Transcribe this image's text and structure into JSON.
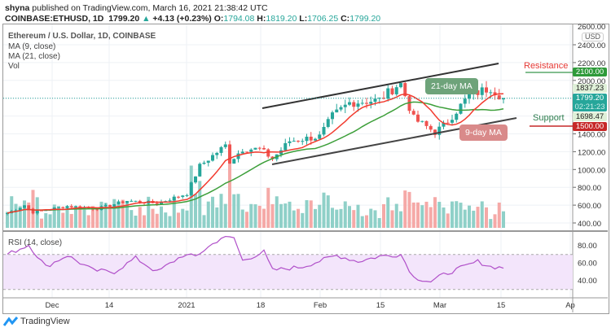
{
  "header": {
    "publisher": "shyna",
    "published_text": "published on TradingView.com, March 16, 2021 21:38:42 UTC",
    "symbol": "COINBASE:ETHUSD, 1D",
    "last": "1799.20",
    "change": "+4.13 (+0.23%)",
    "o_label": "O:",
    "o": "1794.08",
    "h_label": "H:",
    "h": "1819.20",
    "l_label": "L:",
    "l": "1706.25",
    "c_label": "C:",
    "c": "1799.20"
  },
  "legend": {
    "title": "Ethereum / U.S. Dollar, 1D, COINBASE",
    "ma9": "MA (9, close)",
    "ma21": "MA (21, close)",
    "vol": "Vol",
    "rsi": "RSI (14, close)"
  },
  "price_axis": {
    "currency": "USD",
    "top_label": "2600.00"
  },
  "tags": {
    "resistance": "2100.00",
    "ma_high": "1837.23",
    "last": "1799.20",
    "countdown": "02:21:23",
    "ma_low": "1698.47",
    "support": "1500.00"
  },
  "annotations": {
    "resistance": "Resistance",
    "support": "Support",
    "ma21": "21-day MA",
    "ma9": "9-day MA"
  },
  "colors": {
    "up": "#26a69a",
    "down": "#ef5350",
    "ma9": "#f23b2f",
    "ma21": "#3d9f3a",
    "rsi": "#b04fc9",
    "resistance_box": "#2e9a3a",
    "support_box": "#c62828"
  },
  "brand": "TradingView",
  "chart_data": {
    "type": "candlestick",
    "price_ticks": [
      400,
      600,
      800,
      1000,
      1200,
      1400,
      1600,
      1800,
      2000,
      2200,
      2400
    ],
    "rsi_ticks": [
      40,
      60,
      80
    ],
    "rsi_bands": [
      30,
      70
    ],
    "time_ticks": [
      "Dec",
      "14",
      "2021",
      "18",
      "Feb",
      "15",
      "Mar",
      "15",
      "Ap"
    ],
    "close_keypoints": [
      [
        "2020-11-20",
        510
      ],
      [
        "2020-11-24",
        600
      ],
      [
        "2020-11-26",
        520
      ],
      [
        "2020-12-04",
        590
      ],
      [
        "2020-12-11",
        560
      ],
      [
        "2020-12-18",
        650
      ],
      [
        "2020-12-25",
        620
      ],
      [
        "2021-01-01",
        730
      ],
      [
        "2021-01-04",
        1040
      ],
      [
        "2021-01-10",
        1270
      ],
      [
        "2021-01-11",
        1090
      ],
      [
        "2021-01-14",
        1230
      ],
      [
        "2021-01-18",
        1230
      ],
      [
        "2021-01-21",
        1120
      ],
      [
        "2021-01-25",
        1320
      ],
      [
        "2021-02-01",
        1370
      ],
      [
        "2021-02-04",
        1600
      ],
      [
        "2021-02-08",
        1750
      ],
      [
        "2021-02-15",
        1780
      ],
      [
        "2021-02-19",
        1940
      ],
      [
        "2021-02-20",
        1960
      ],
      [
        "2021-02-23",
        1570
      ],
      [
        "2021-02-28",
        1420
      ],
      [
        "2021-03-02",
        1490
      ],
      [
        "2021-03-08",
        1830
      ],
      [
        "2021-03-13",
        1920
      ],
      [
        "2021-03-16",
        1799.2
      ]
    ],
    "rsi_keypoints": [
      [
        "2020-11-20",
        70
      ],
      [
        "2020-11-25",
        81
      ],
      [
        "2020-11-29",
        56
      ],
      [
        "2020-12-04",
        69
      ],
      [
        "2020-12-10",
        52
      ],
      [
        "2020-12-15",
        50
      ],
      [
        "2020-12-20",
        66
      ],
      [
        "2020-12-25",
        50
      ],
      [
        "2020-12-31",
        69
      ],
      [
        "2021-01-03",
        68
      ],
      [
        "2021-01-09",
        89
      ],
      [
        "2021-01-12",
        89
      ],
      [
        "2021-01-14",
        63
      ],
      [
        "2021-01-19",
        73
      ],
      [
        "2021-01-21",
        52
      ],
      [
        "2021-01-28",
        56
      ],
      [
        "2021-02-05",
        69
      ],
      [
        "2021-02-10",
        62
      ],
      [
        "2021-02-15",
        68
      ],
      [
        "2021-02-20",
        70
      ],
      [
        "2021-02-23",
        44
      ],
      [
        "2021-02-27",
        39
      ],
      [
        "2021-03-02",
        47
      ],
      [
        "2021-03-10",
        62
      ],
      [
        "2021-03-13",
        56
      ],
      [
        "2021-03-16",
        55
      ]
    ]
  }
}
